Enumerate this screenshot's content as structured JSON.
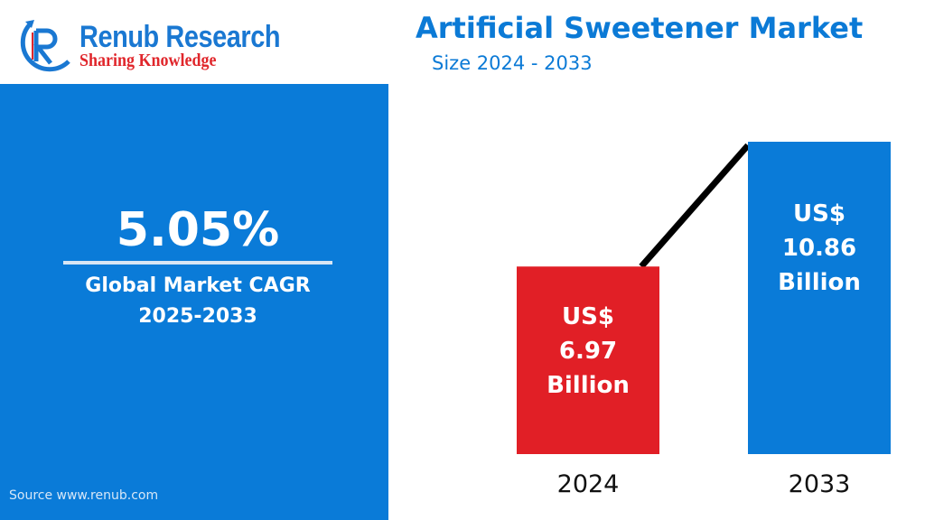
{
  "brand": {
    "name": "Renub Research",
    "tagline": "Sharing Knowledge"
  },
  "kpi": {
    "value": "5.05%",
    "label": "Global Market CAGR",
    "period": "2025-2033"
  },
  "source": "Source  www.renub.com",
  "colors": {
    "accent": "#0a7bd8",
    "bar_2024": "#e11f26",
    "bar_2033": "#0a7bd8"
  },
  "chart_data": {
    "type": "bar",
    "title": "Artificial Sweetener Market",
    "subtitle": "Size 2024 - 2033",
    "categories": [
      "2024",
      "2033"
    ],
    "values": [
      6.97,
      10.86
    ],
    "unit": "US$ Billion",
    "labels": [
      [
        "US$",
        "6.97",
        "Billion"
      ],
      [
        "US$",
        "10.86",
        "Billion"
      ]
    ]
  }
}
